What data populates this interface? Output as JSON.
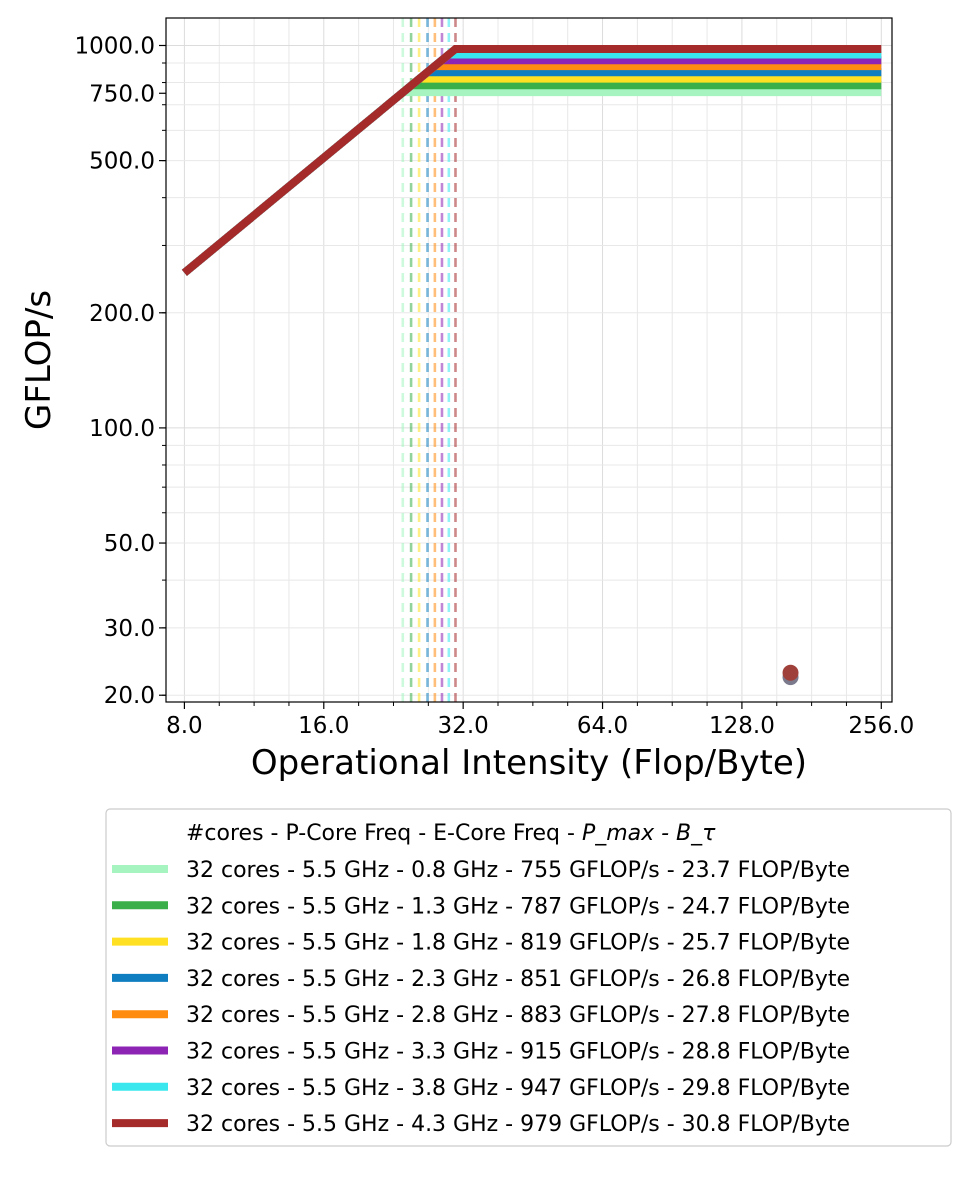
{
  "chart_data": {
    "type": "line",
    "title": "",
    "xlabel": "Operational Intensity (Flop/Byte)",
    "ylabel": "GFLOP/s",
    "xscale": "log2",
    "yscale": "log",
    "xlim": [
      7.3,
      270
    ],
    "ylim": [
      19.2,
      1180
    ],
    "x_ticks": [
      8,
      16,
      32,
      64,
      128,
      256
    ],
    "x_tick_labels": [
      "8.0",
      "16.0",
      "32.0",
      "64.0",
      "128.0",
      "256.0"
    ],
    "y_ticks": [
      20,
      30,
      50,
      100,
      200,
      500,
      750,
      1000
    ],
    "y_tick_labels": [
      "20.0",
      "30.0",
      "50.0",
      "100.0",
      "200.0",
      "500.0",
      "750.0",
      "1000.0"
    ],
    "grid": true,
    "legend_placement": "below",
    "legend_header": "#cores - P-Core Freq - E-Core Freq - ",
    "legend_header_math": "P_max - B_τ",
    "memory_bandwidth_gb_per_s": 31.8,
    "roofline_start_x": 8,
    "roofline_end_x": 256,
    "series": [
      {
        "name": "32 cores - 5.5 GHz - 0.8 GHz - 755 GFLOP/s - 23.7 FLOP/Byte",
        "color": "#a6f5c0",
        "peak": 755,
        "ridge": 23.7
      },
      {
        "name": "32 cores - 5.5 GHz - 1.3 GHz - 787 GFLOP/s - 24.7 FLOP/Byte",
        "color": "#3aaf4a",
        "peak": 787,
        "ridge": 24.7
      },
      {
        "name": "32 cores - 5.5 GHz - 1.8 GHz - 819 GFLOP/s - 25.7 FLOP/Byte",
        "color": "#ffe022",
        "peak": 819,
        "ridge": 25.7
      },
      {
        "name": "32 cores - 5.5 GHz - 2.3 GHz - 851 GFLOP/s - 26.8 FLOP/Byte",
        "color": "#0f7ec1",
        "peak": 851,
        "ridge": 26.8
      },
      {
        "name": "32 cores - 5.5 GHz - 2.8 GHz - 883 GFLOP/s - 27.8 FLOP/Byte",
        "color": "#ff8c0e",
        "peak": 883,
        "ridge": 27.8
      },
      {
        "name": "32 cores - 5.5 GHz - 3.3 GHz - 915 GFLOP/s - 28.8 FLOP/Byte",
        "color": "#8e24b4",
        "peak": 915,
        "ridge": 28.8
      },
      {
        "name": "32 cores - 5.5 GHz - 3.8 GHz - 947 GFLOP/s - 29.8 FLOP/Byte",
        "color": "#38e8ee",
        "peak": 947,
        "ridge": 29.8
      },
      {
        "name": "32 cores - 5.5 GHz - 4.3 GHz - 979 GFLOP/s - 30.8 FLOP/Byte",
        "color": "#a52a2a",
        "peak": 979,
        "ridge": 30.8
      }
    ],
    "kernel_points": [
      {
        "x": 163,
        "y": 22.3,
        "color": "#7a7a8c"
      },
      {
        "x": 163,
        "y": 22.9,
        "color": "#a0403a"
      }
    ]
  }
}
